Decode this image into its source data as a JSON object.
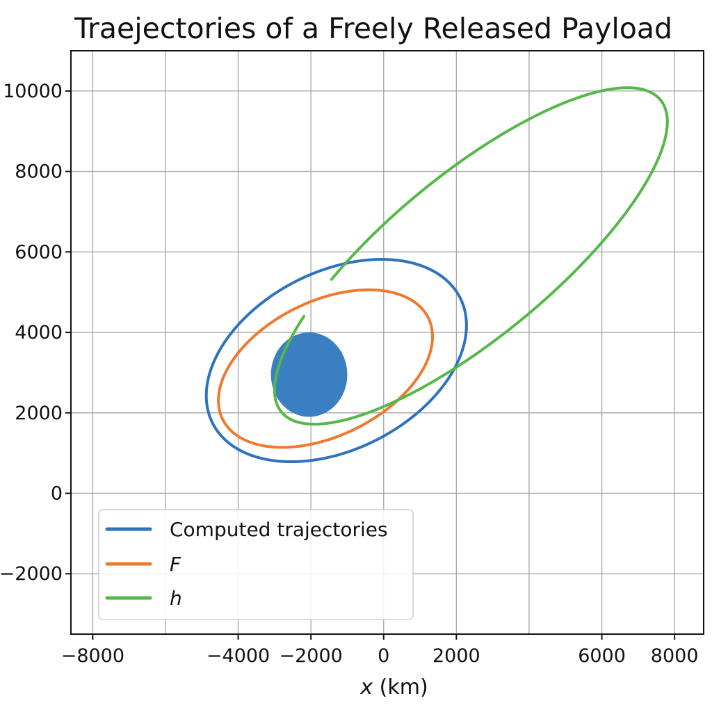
{
  "chart_data": {
    "type": "line",
    "title": "Traejectories of a Freely Released Payload",
    "xlabel": "x (km)",
    "xlabel_italic_part": "x",
    "xlabel_rest": " (km)",
    "ylabel": "",
    "xlim": [
      -8600,
      8800
    ],
    "ylim": [
      -3500,
      11000
    ],
    "x_ticks": [
      -8000,
      -4000,
      -2000,
      0,
      2000,
      6000,
      8000
    ],
    "x_tick_labels": [
      "−8000",
      "−4000",
      "−2000",
      "0",
      "2000",
      "6000",
      "8000"
    ],
    "x_grid": [
      -8000,
      -6000,
      -4000,
      -2000,
      0,
      2000,
      4000,
      6000,
      8000
    ],
    "y_ticks": [
      -2000,
      0,
      2000,
      4000,
      6000,
      8000,
      10000
    ],
    "y_tick_labels": [
      "−2000",
      "0",
      "2000",
      "4000",
      "6000",
      "8000",
      "10000"
    ],
    "grid": true,
    "legend_position": "lower-left",
    "planet": {
      "center": [
        -2050,
        2950
      ],
      "radius_km": 1050,
      "color": "#3a7fc1"
    },
    "series": [
      {
        "name": "Computed trajectories",
        "italic": false,
        "color": "#2f72bd",
        "shape": "ellipse",
        "center": [
          -1300,
          3300
        ],
        "semi_axes": [
          3750,
          2250
        ],
        "rotation_deg": 22
      },
      {
        "name": "F",
        "italic": true,
        "color": "#ef7a2f",
        "shape": "ellipse",
        "center": [
          -1600,
          3100
        ],
        "semi_axes": [
          3100,
          1700
        ],
        "rotation_deg": 22
      },
      {
        "name": "h",
        "italic": true,
        "color": "#55b848",
        "shape": "ellipse",
        "center": [
          2400,
          5900
        ],
        "semi_axes": [
          6500,
          2100
        ],
        "rotation_deg": 36,
        "arc_start_deg": 135,
        "arc_end_deg": 482
      }
    ]
  }
}
